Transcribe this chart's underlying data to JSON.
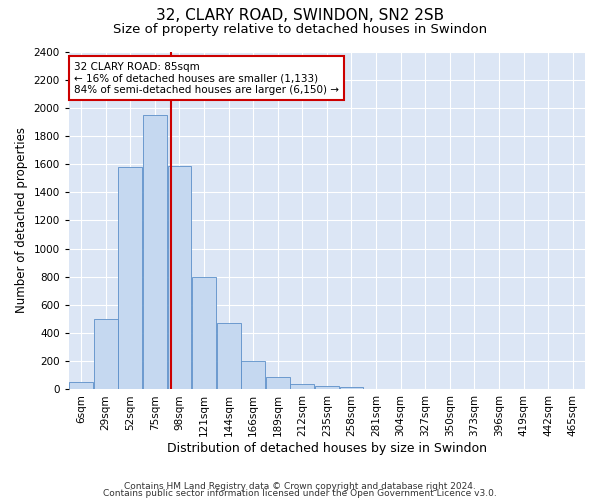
{
  "title": "32, CLARY ROAD, SWINDON, SN2 2SB",
  "subtitle": "Size of property relative to detached houses in Swindon",
  "xlabel": "Distribution of detached houses by size in Swindon",
  "ylabel": "Number of detached properties",
  "categories": [
    "6sqm",
    "29sqm",
    "52sqm",
    "75sqm",
    "98sqm",
    "121sqm",
    "144sqm",
    "166sqm",
    "189sqm",
    "212sqm",
    "235sqm",
    "258sqm",
    "281sqm",
    "304sqm",
    "327sqm",
    "350sqm",
    "373sqm",
    "396sqm",
    "419sqm",
    "442sqm",
    "465sqm"
  ],
  "values": [
    55,
    500,
    1580,
    1950,
    1590,
    800,
    470,
    200,
    90,
    38,
    28,
    20,
    0,
    0,
    0,
    0,
    0,
    0,
    0,
    0,
    0
  ],
  "bar_color": "#c5d8f0",
  "bar_edge_color": "#5b8fc9",
  "bar_width": 0.97,
  "property_line_x": 3.65,
  "annotation_text": "32 CLARY ROAD: 85sqm\n← 16% of detached houses are smaller (1,133)\n84% of semi-detached houses are larger (6,150) →",
  "annotation_box_color": "#ffffff",
  "annotation_box_edge": "#cc0000",
  "vline_color": "#cc0000",
  "ylim": [
    0,
    2400
  ],
  "yticks": [
    0,
    200,
    400,
    600,
    800,
    1000,
    1200,
    1400,
    1600,
    1800,
    2000,
    2200,
    2400
  ],
  "background_color": "#dce6f5",
  "grid_color": "#ffffff",
  "footer1": "Contains HM Land Registry data © Crown copyright and database right 2024.",
  "footer2": "Contains public sector information licensed under the Open Government Licence v3.0.",
  "title_fontsize": 11,
  "subtitle_fontsize": 9.5,
  "xlabel_fontsize": 9,
  "ylabel_fontsize": 8.5,
  "tick_fontsize": 7.5,
  "footer_fontsize": 6.5
}
